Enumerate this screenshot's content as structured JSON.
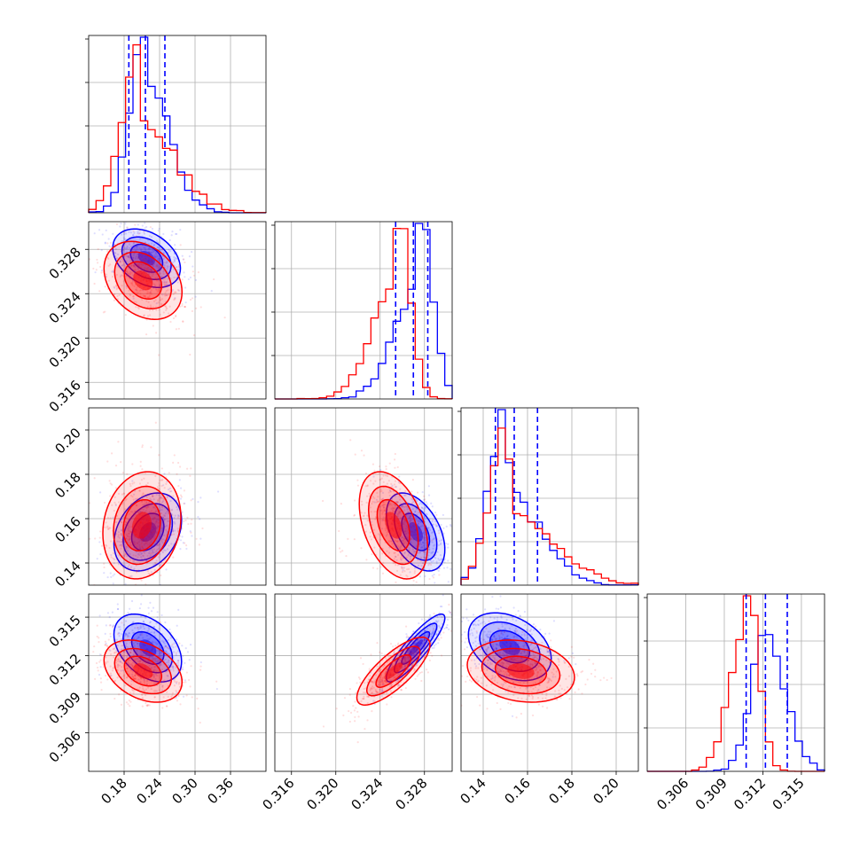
{
  "chart_data": [
    {
      "type": "histogram",
      "position": "row1-col1",
      "variable_index": 0,
      "xlim": [
        0.12,
        0.42
      ],
      "x_ticks": [
        "0.18",
        "0.24",
        "0.30",
        "0.36"
      ],
      "quantile_lines": [
        0.188,
        0.216,
        0.249
      ],
      "series": [
        {
          "name": "blue",
          "color": "#0000ff",
          "mode": 0.218,
          "spread": 0.026,
          "skew": 0.02
        },
        {
          "name": "red",
          "color": "#ff0000",
          "mode": 0.208,
          "spread": 0.03,
          "skew": 0.045
        }
      ]
    },
    {
      "type": "histogram",
      "position": "row2-col2",
      "variable_index": 1,
      "xlim": [
        0.3145,
        0.3305
      ],
      "x_ticks": [
        "0.316",
        "0.320",
        "0.324",
        "0.328"
      ],
      "quantile_lines": [
        0.3254,
        0.327,
        0.3283
      ],
      "series": [
        {
          "name": "blue",
          "color": "#0000ff",
          "mode": 0.3274,
          "spread": 0.0012,
          "skew": -0.0015
        },
        {
          "name": "red",
          "color": "#ff0000",
          "mode": 0.3254,
          "spread": 0.0011,
          "skew": -0.0018
        }
      ]
    },
    {
      "type": "histogram",
      "position": "row3-col3",
      "variable_index": 2,
      "xlim": [
        0.13,
        0.21
      ],
      "x_ticks": [
        "0.14",
        "0.16",
        "0.18",
        "0.20"
      ],
      "quantile_lines": [
        0.1455,
        0.154,
        0.1645
      ],
      "series": [
        {
          "name": "blue",
          "color": "#0000ff",
          "mode": 0.151,
          "spread": 0.0075,
          "skew": 0.012
        },
        {
          "name": "red",
          "color": "#ff0000",
          "mode": 0.152,
          "spread": 0.008,
          "skew": 0.02
        }
      ]
    },
    {
      "type": "histogram",
      "position": "row4-col4",
      "variable_index": 3,
      "xlim": [
        0.303,
        0.3168
      ],
      "x_ticks": [
        "0.306",
        "0.309",
        "0.312",
        "0.315"
      ],
      "quantile_lines": [
        0.3107,
        0.3122,
        0.3139
      ],
      "series": [
        {
          "name": "blue",
          "color": "#0000ff",
          "mode": 0.3124,
          "spread": 0.0012,
          "skew": 0.0004
        },
        {
          "name": "red",
          "color": "#ff0000",
          "mode": 0.3107,
          "spread": 0.0009,
          "skew": -0.0006
        }
      ]
    },
    {
      "type": "scatter",
      "position": "row2-col1",
      "x_index": 0,
      "y_index": 1,
      "xlim": [
        0.12,
        0.42
      ],
      "ylim": [
        0.3145,
        0.3305
      ],
      "y_ticks": [
        "0.316",
        "0.320",
        "0.324",
        "0.328"
      ],
      "series": [
        {
          "name": "blue",
          "color": "#0000ff",
          "cx": 0.218,
          "cy": 0.3272,
          "sx": 0.026,
          "sy": 0.0012,
          "rho": -0.35
        },
        {
          "name": "red",
          "color": "#ff0000",
          "cx": 0.212,
          "cy": 0.3252,
          "sx": 0.03,
          "sy": 0.0016,
          "rho": -0.3
        }
      ]
    },
    {
      "type": "scatter",
      "position": "row3-col1",
      "x_index": 0,
      "y_index": 2,
      "xlim": [
        0.12,
        0.42
      ],
      "ylim": [
        0.13,
        0.21
      ],
      "y_ticks": [
        "0.14",
        "0.16",
        "0.18",
        "0.20"
      ],
      "series": [
        {
          "name": "blue",
          "color": "#0000ff",
          "cx": 0.22,
          "cy": 0.154,
          "sx": 0.026,
          "sy": 0.008,
          "rho": 0.3
        },
        {
          "name": "red",
          "color": "#ff0000",
          "cx": 0.21,
          "cy": 0.157,
          "sx": 0.03,
          "sy": 0.011,
          "rho": 0.15
        }
      ]
    },
    {
      "type": "scatter",
      "position": "row3-col2",
      "x_index": 1,
      "y_index": 2,
      "xlim": [
        0.3145,
        0.3305
      ],
      "ylim": [
        0.13,
        0.21
      ],
      "series": [
        {
          "name": "blue",
          "color": "#0000ff",
          "cx": 0.3272,
          "cy": 0.154,
          "sx": 0.0012,
          "sy": 0.008,
          "rho": -0.45
        },
        {
          "name": "red",
          "color": "#ff0000",
          "cx": 0.3252,
          "cy": 0.157,
          "sx": 0.0014,
          "sy": 0.011,
          "rho": -0.4
        }
      ]
    },
    {
      "type": "scatter",
      "position": "row4-col1",
      "x_index": 0,
      "y_index": 3,
      "xlim": [
        0.12,
        0.42
      ],
      "ylim": [
        0.303,
        0.3168
      ],
      "y_ticks": [
        "0.306",
        "0.309",
        "0.312",
        "0.315"
      ],
      "series": [
        {
          "name": "blue",
          "color": "#0000ff",
          "cx": 0.22,
          "cy": 0.3126,
          "sx": 0.026,
          "sy": 0.0012,
          "rho": -0.4
        },
        {
          "name": "red",
          "color": "#ff0000",
          "cx": 0.212,
          "cy": 0.3108,
          "sx": 0.03,
          "sy": 0.0011,
          "rho": -0.35
        }
      ]
    },
    {
      "type": "scatter",
      "position": "row4-col2",
      "x_index": 1,
      "y_index": 3,
      "xlim": [
        0.3145,
        0.3305
      ],
      "ylim": [
        0.303,
        0.3168
      ],
      "series": [
        {
          "name": "blue",
          "color": "#0000ff",
          "cx": 0.3272,
          "cy": 0.3126,
          "sx": 0.0012,
          "sy": 0.0012,
          "rho": 0.88
        },
        {
          "name": "red",
          "color": "#ff0000",
          "cx": 0.3252,
          "cy": 0.3108,
          "sx": 0.0015,
          "sy": 0.0012,
          "rho": 0.78
        }
      ]
    },
    {
      "type": "scatter",
      "position": "row4-col3",
      "x_index": 2,
      "y_index": 3,
      "xlim": [
        0.13,
        0.21
      ],
      "ylim": [
        0.303,
        0.3168
      ],
      "series": [
        {
          "name": "blue",
          "color": "#0000ff",
          "cx": 0.152,
          "cy": 0.3127,
          "sx": 0.0085,
          "sy": 0.0012,
          "rho": -0.35
        },
        {
          "name": "red",
          "color": "#ff0000",
          "cx": 0.157,
          "cy": 0.3108,
          "sx": 0.011,
          "sy": 0.0011,
          "rho": -0.2
        }
      ]
    }
  ]
}
